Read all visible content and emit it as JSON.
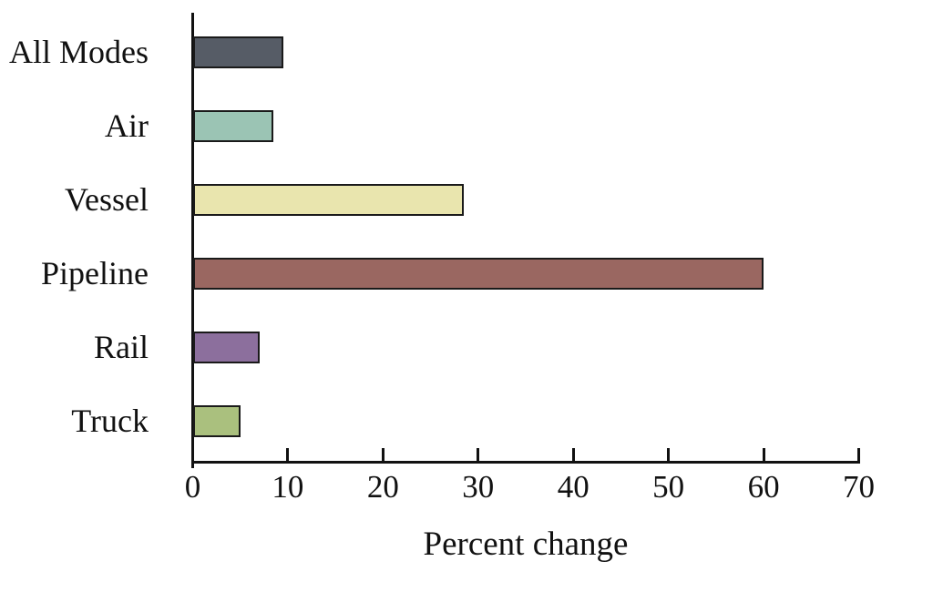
{
  "chart_data": {
    "type": "bar",
    "orientation": "horizontal",
    "categories": [
      "All Modes",
      "Air",
      "Vessel",
      "Pipeline",
      "Rail",
      "Truck"
    ],
    "values": [
      9.5,
      8.5,
      28.5,
      60,
      7,
      5
    ],
    "bar_colors": [
      "#565c66",
      "#9bc4b4",
      "#e9e5ae",
      "#9a6761",
      "#8c6f9d",
      "#aac07e"
    ],
    "bar_border_color": "#1a1a1a",
    "axis_color": "#111111",
    "title": "",
    "xlabel": "Percent change",
    "ylabel": "",
    "xlim": [
      0,
      70
    ],
    "xticks": [
      0,
      10,
      20,
      30,
      40,
      50,
      60,
      70
    ],
    "grid": false,
    "legend": false
  }
}
